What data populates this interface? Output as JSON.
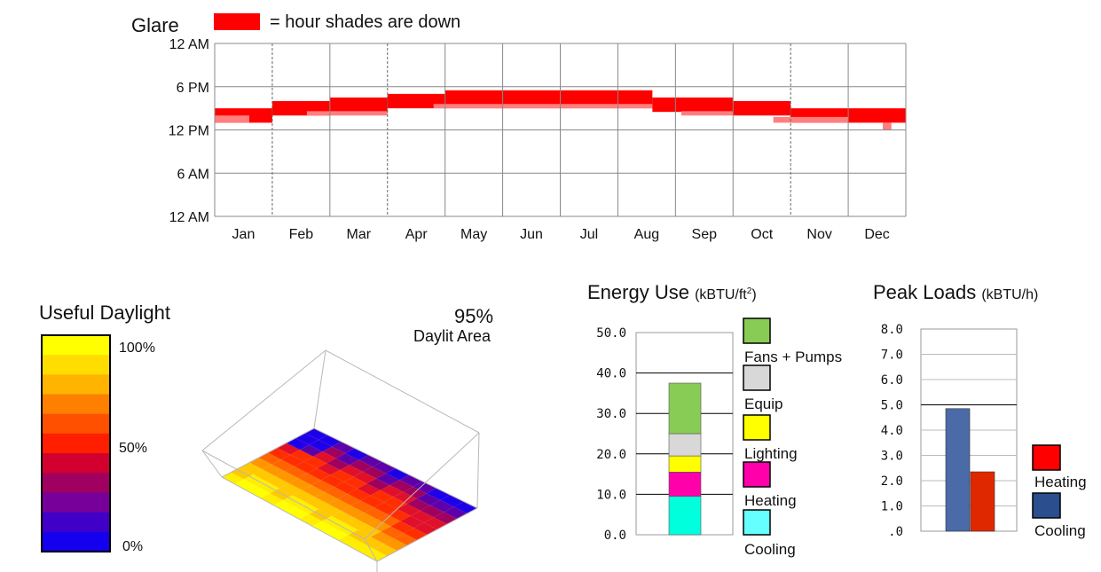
{
  "glare": {
    "title": "Glare",
    "legend_label": "= hour shades are down",
    "legend_color": "#ff0000",
    "light_color": "#ff7f7f",
    "chart_data": {
      "type": "timeline",
      "months": [
        "Jan",
        "Feb",
        "Mar",
        "Apr",
        "May",
        "Jun",
        "Jul",
        "Aug",
        "Sep",
        "Oct",
        "Nov",
        "Dec"
      ],
      "y_ticks": [
        "12 AM",
        "6 PM",
        "12 PM",
        "6 AM",
        "12 AM"
      ],
      "ylim_hours": [
        0,
        24
      ],
      "bands": [
        {
          "start_month": 0.0,
          "end_month": 1.0,
          "from_hour": 13.0,
          "to_hour": 15.0
        },
        {
          "start_month": 1.0,
          "end_month": 2.0,
          "from_hour": 14.0,
          "to_hour": 16.0
        },
        {
          "start_month": 2.0,
          "end_month": 3.0,
          "from_hour": 14.5,
          "to_hour": 16.5
        },
        {
          "start_month": 3.0,
          "end_month": 4.0,
          "from_hour": 15.0,
          "to_hour": 17.0
        },
        {
          "start_month": 4.0,
          "end_month": 7.6,
          "from_hour": 15.0,
          "to_hour": 17.5
        },
        {
          "start_month": 7.6,
          "end_month": 9.0,
          "from_hour": 14.5,
          "to_hour": 16.5
        },
        {
          "start_month": 9.0,
          "end_month": 10.0,
          "from_hour": 14.0,
          "to_hour": 16.0
        },
        {
          "start_month": 10.0,
          "end_month": 12.0,
          "from_hour": 13.0,
          "to_hour": 15.0
        }
      ],
      "light_bands": [
        {
          "start_month": 0.0,
          "end_month": 0.6,
          "from_hour": 13.0,
          "to_hour": 14.0
        },
        {
          "start_month": 1.6,
          "end_month": 3.0,
          "from_hour": 14.0,
          "to_hour": 14.6
        },
        {
          "start_month": 3.8,
          "end_month": 7.6,
          "from_hour": 15.0,
          "to_hour": 15.6
        },
        {
          "start_month": 8.1,
          "end_month": 9.0,
          "from_hour": 14.0,
          "to_hour": 14.6
        },
        {
          "start_month": 9.7,
          "end_month": 11.0,
          "from_hour": 13.0,
          "to_hour": 13.8
        },
        {
          "start_month": 11.6,
          "end_month": 11.75,
          "from_hour": 12.0,
          "to_hour": 13.0
        }
      ]
    }
  },
  "daylight": {
    "title": "Useful Daylight",
    "legend_ticks": [
      "100%",
      "50%",
      "0%"
    ],
    "legend_colors": [
      "#ffff00",
      "#ffdd00",
      "#ffb400",
      "#ff8000",
      "#ff5000",
      "#ff1e00",
      "#d2002e",
      "#a00060",
      "#78009a",
      "#4000c8",
      "#1400ee"
    ],
    "percent": "95%",
    "percent_label": "Daylit Area",
    "grid_colors": [
      "#ffff00",
      "#ffee00",
      "#ffc800",
      "#ff9600",
      "#ff6400",
      "#ff2e00",
      "#e0102a",
      "#a0005e",
      "#5e00a8",
      "#1e00e8"
    ]
  },
  "energy": {
    "title": "Energy Use",
    "units": "(kBTU/ft",
    "units_sup": "2",
    "units_end": ")",
    "chart_data": {
      "type": "stacked_bar",
      "ylim": [
        0,
        50
      ],
      "y_ticks": [
        "50.0",
        "40.0",
        "30.0",
        "20.0",
        "10.0",
        "0.0"
      ],
      "segments": [
        {
          "name": "Cooling",
          "value": 9.5,
          "color": "#00ffdd"
        },
        {
          "name": "Heating",
          "value": 6.0,
          "color": "#ff00aa"
        },
        {
          "name": "Lighting",
          "value": 4.0,
          "color": "#ffff00"
        },
        {
          "name": "Equip",
          "value": 5.5,
          "color": "#d8d8d8"
        },
        {
          "name": "Fans + Pumps",
          "value": 12.5,
          "color": "#88cc55"
        }
      ]
    },
    "legend": [
      {
        "label": "Fans + Pumps",
        "color": "#88cc55"
      },
      {
        "label": "Equip",
        "color": "#d8d8d8"
      },
      {
        "label": "Lighting",
        "color": "#ffff00"
      },
      {
        "label": "Heating",
        "color": "#ff00aa"
      },
      {
        "label": "Cooling",
        "color": "#66ffff"
      }
    ]
  },
  "peak": {
    "title": "Peak Loads",
    "units": "(kBTU/h)",
    "chart_data": {
      "type": "bar",
      "ylim": [
        0,
        8
      ],
      "y_ticks": [
        "8.0",
        "7.0",
        "6.0",
        "5.0",
        "4.0",
        "3.0",
        "2.0",
        "1.0",
        ".0"
      ],
      "bars": [
        {
          "name": "Cooling",
          "value": 4.85,
          "color": "#4a6aa8"
        },
        {
          "name": "Heating",
          "value": 2.35,
          "color": "#e02800"
        }
      ]
    },
    "legend": [
      {
        "label": "Heating",
        "color": "#ff0000"
      },
      {
        "label": "Cooling",
        "color": "#2a4e8e"
      }
    ]
  }
}
